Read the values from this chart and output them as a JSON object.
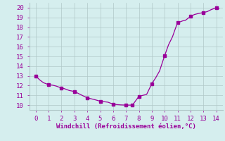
{
  "x": [
    0,
    0.3,
    0.6,
    1,
    1.3,
    1.6,
    2,
    2.2,
    2.4,
    2.6,
    3,
    3.3,
    3.6,
    4,
    4.3,
    4.6,
    5,
    5.3,
    5.6,
    6,
    6.3,
    6.6,
    7,
    7.25,
    7.5,
    8,
    8.3,
    8.6,
    9,
    9.3,
    9.6,
    10,
    10.3,
    10.6,
    11,
    11.2,
    11.4,
    11.6,
    12,
    12.3,
    12.6,
    13,
    13.3,
    13.6,
    14,
    14.2
  ],
  "y": [
    13,
    12.6,
    12.3,
    12.1,
    12.05,
    11.95,
    11.75,
    11.7,
    11.6,
    11.5,
    11.4,
    11.2,
    11.0,
    10.75,
    10.65,
    10.55,
    10.4,
    10.35,
    10.3,
    10.1,
    10.05,
    10.02,
    10.0,
    10.0,
    10.0,
    10.9,
    11.0,
    11.1,
    12.2,
    12.8,
    13.5,
    15.1,
    16.2,
    17.0,
    18.5,
    18.55,
    18.65,
    18.7,
    19.1,
    19.3,
    19.4,
    19.5,
    19.6,
    19.8,
    20.0,
    19.9
  ],
  "marker_x": [
    0,
    1,
    2,
    3,
    4,
    5,
    6,
    7,
    7.5,
    8,
    9,
    10,
    11,
    12,
    13,
    14
  ],
  "marker_y": [
    13,
    12.1,
    11.75,
    11.4,
    10.75,
    10.4,
    10.1,
    10.0,
    10.0,
    10.9,
    12.2,
    15.1,
    18.5,
    19.1,
    19.5,
    20.0
  ],
  "line_color": "#990099",
  "xlabel": "Windchill (Refroidissement éolien,°C)",
  "xlim": [
    -0.5,
    14.5
  ],
  "ylim": [
    9.5,
    20.5
  ],
  "xticks": [
    0,
    1,
    2,
    3,
    4,
    5,
    6,
    7,
    8,
    9,
    10,
    11,
    12,
    13,
    14
  ],
  "yticks": [
    10,
    11,
    12,
    13,
    14,
    15,
    16,
    17,
    18,
    19,
    20
  ],
  "bg_color": "#d5eeee",
  "grid_color": "#b0c8c8",
  "xlabel_color": "#990099",
  "tick_color": "#990099",
  "tick_fontsize": 6.5,
  "xlabel_fontsize": 6.5
}
